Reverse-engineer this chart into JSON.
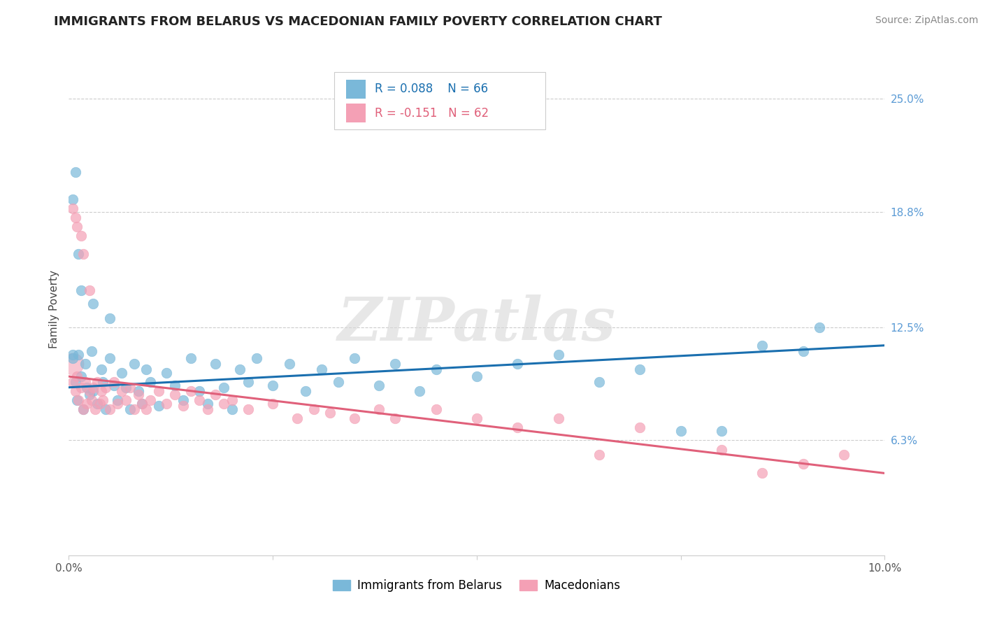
{
  "title": "IMMIGRANTS FROM BELARUS VS MACEDONIAN FAMILY POVERTY CORRELATION CHART",
  "source": "Source: ZipAtlas.com",
  "ylabel": "Family Poverty",
  "xmin": 0.0,
  "xmax": 10.0,
  "ymin": 0.0,
  "ymax": 27.0,
  "ytick_positions": [
    6.3,
    12.5,
    18.8,
    25.0
  ],
  "ytick_labels": [
    "6.3%",
    "12.5%",
    "18.8%",
    "25.0%"
  ],
  "xtick_positions": [
    0.0,
    2.5,
    5.0,
    7.5,
    10.0
  ],
  "xtick_labels": [
    "0.0%",
    "",
    "",
    "",
    "10.0%"
  ],
  "legend_label1": "Immigrants from Belarus",
  "legend_label2": "Macedonians",
  "R1": 0.088,
  "N1": 66,
  "R2": -0.151,
  "N2": 62,
  "color1": "#7ab8d9",
  "color2": "#f4a0b5",
  "trendline1_color": "#1a6faf",
  "trendline2_color": "#e0607a",
  "trendline1_x0": 0.0,
  "trendline1_y0": 9.2,
  "trendline1_x1": 10.0,
  "trendline1_y1": 11.5,
  "trendline2_x0": 0.0,
  "trendline2_y0": 9.8,
  "trendline2_x1": 10.0,
  "trendline2_y1": 4.5,
  "watermark_text": "ZIPatlas",
  "watermark_color": "#d8d8d8",
  "background_color": "#ffffff",
  "grid_color": "#cccccc",
  "grid_linestyle": "--",
  "scatter1": [
    [
      0.05,
      10.8
    ],
    [
      0.08,
      9.5
    ],
    [
      0.1,
      8.5
    ],
    [
      0.12,
      11.0
    ],
    [
      0.15,
      9.8
    ],
    [
      0.18,
      8.0
    ],
    [
      0.2,
      10.5
    ],
    [
      0.22,
      9.2
    ],
    [
      0.25,
      8.8
    ],
    [
      0.28,
      11.2
    ],
    [
      0.3,
      9.0
    ],
    [
      0.35,
      8.3
    ],
    [
      0.4,
      10.2
    ],
    [
      0.42,
      9.5
    ],
    [
      0.45,
      8.0
    ],
    [
      0.5,
      10.8
    ],
    [
      0.55,
      9.3
    ],
    [
      0.6,
      8.5
    ],
    [
      0.65,
      10.0
    ],
    [
      0.7,
      9.2
    ],
    [
      0.75,
      8.0
    ],
    [
      0.8,
      10.5
    ],
    [
      0.85,
      9.0
    ],
    [
      0.9,
      8.3
    ],
    [
      0.95,
      10.2
    ],
    [
      1.0,
      9.5
    ],
    [
      1.1,
      8.2
    ],
    [
      1.2,
      10.0
    ],
    [
      1.3,
      9.3
    ],
    [
      1.4,
      8.5
    ],
    [
      1.5,
      10.8
    ],
    [
      1.6,
      9.0
    ],
    [
      1.7,
      8.3
    ],
    [
      1.8,
      10.5
    ],
    [
      1.9,
      9.2
    ],
    [
      2.0,
      8.0
    ],
    [
      2.1,
      10.2
    ],
    [
      2.2,
      9.5
    ],
    [
      2.3,
      10.8
    ],
    [
      2.5,
      9.3
    ],
    [
      2.7,
      10.5
    ],
    [
      2.9,
      9.0
    ],
    [
      3.1,
      10.2
    ],
    [
      3.3,
      9.5
    ],
    [
      3.5,
      10.8
    ],
    [
      3.8,
      9.3
    ],
    [
      4.0,
      10.5
    ],
    [
      4.3,
      9.0
    ],
    [
      4.5,
      10.2
    ],
    [
      5.0,
      9.8
    ],
    [
      5.5,
      10.5
    ],
    [
      6.0,
      11.0
    ],
    [
      6.5,
      9.5
    ],
    [
      7.0,
      10.2
    ],
    [
      7.5,
      6.8
    ],
    [
      8.0,
      6.8
    ],
    [
      8.5,
      11.5
    ],
    [
      9.0,
      11.2
    ],
    [
      9.2,
      12.5
    ],
    [
      0.05,
      19.5
    ],
    [
      0.08,
      21.0
    ],
    [
      0.12,
      16.5
    ],
    [
      0.15,
      14.5
    ],
    [
      0.3,
      13.8
    ],
    [
      0.5,
      13.0
    ],
    [
      0.05,
      11.0
    ]
  ],
  "scatter2": [
    [
      0.05,
      9.5
    ],
    [
      0.08,
      9.0
    ],
    [
      0.1,
      9.8
    ],
    [
      0.12,
      8.5
    ],
    [
      0.15,
      9.2
    ],
    [
      0.18,
      8.0
    ],
    [
      0.2,
      9.5
    ],
    [
      0.22,
      8.3
    ],
    [
      0.25,
      9.0
    ],
    [
      0.28,
      8.5
    ],
    [
      0.3,
      9.2
    ],
    [
      0.32,
      8.0
    ],
    [
      0.35,
      9.5
    ],
    [
      0.38,
      8.3
    ],
    [
      0.4,
      9.0
    ],
    [
      0.42,
      8.5
    ],
    [
      0.45,
      9.2
    ],
    [
      0.5,
      8.0
    ],
    [
      0.55,
      9.5
    ],
    [
      0.6,
      8.3
    ],
    [
      0.65,
      9.0
    ],
    [
      0.7,
      8.5
    ],
    [
      0.75,
      9.2
    ],
    [
      0.8,
      8.0
    ],
    [
      0.85,
      8.8
    ],
    [
      0.9,
      8.3
    ],
    [
      0.95,
      8.0
    ],
    [
      1.0,
      8.5
    ],
    [
      1.1,
      9.0
    ],
    [
      1.2,
      8.3
    ],
    [
      1.3,
      8.8
    ],
    [
      1.4,
      8.2
    ],
    [
      1.5,
      9.0
    ],
    [
      1.6,
      8.5
    ],
    [
      1.7,
      8.0
    ],
    [
      1.8,
      8.8
    ],
    [
      1.9,
      8.3
    ],
    [
      2.0,
      8.5
    ],
    [
      2.2,
      8.0
    ],
    [
      2.5,
      8.3
    ],
    [
      2.8,
      7.5
    ],
    [
      3.0,
      8.0
    ],
    [
      3.2,
      7.8
    ],
    [
      3.5,
      7.5
    ],
    [
      3.8,
      8.0
    ],
    [
      4.0,
      7.5
    ],
    [
      4.5,
      8.0
    ],
    [
      5.0,
      7.5
    ],
    [
      5.5,
      7.0
    ],
    [
      6.0,
      7.5
    ],
    [
      6.5,
      5.5
    ],
    [
      7.0,
      7.0
    ],
    [
      8.0,
      5.8
    ],
    [
      8.5,
      4.5
    ],
    [
      9.0,
      5.0
    ],
    [
      9.5,
      5.5
    ],
    [
      0.05,
      19.0
    ],
    [
      0.08,
      18.5
    ],
    [
      0.1,
      18.0
    ],
    [
      0.15,
      17.5
    ],
    [
      0.18,
      16.5
    ],
    [
      0.25,
      14.5
    ]
  ],
  "scatter1_big": [
    [
      0.05,
      10.5
    ]
  ],
  "scatter2_big": [
    [
      0.05,
      10.2
    ]
  ],
  "gridline_color": "#cccccc",
  "gridline_style": "--",
  "ytick_color": "#5b9bd5",
  "xtick_color": "#555555",
  "title_fontsize": 13,
  "source_fontsize": 10,
  "legend_box_color": "#cccccc",
  "legend_R1_color": "#1a6faf",
  "legend_R2_color": "#e0607a"
}
